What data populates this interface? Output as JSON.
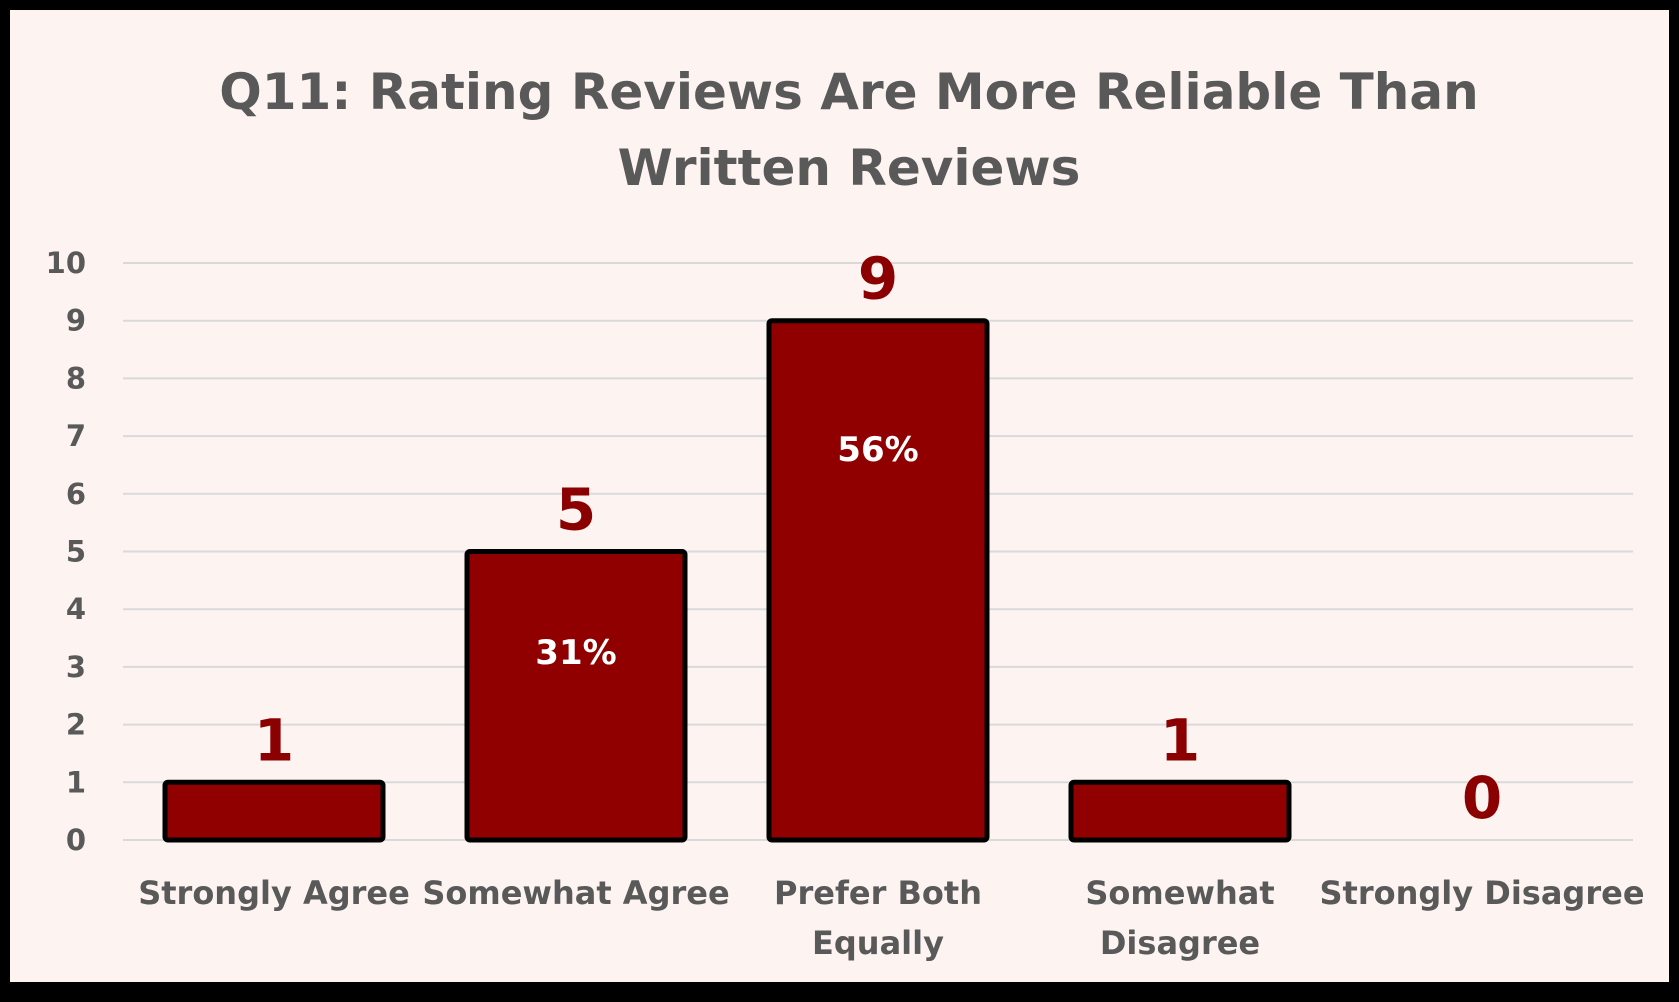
{
  "chart_data": {
    "type": "bar",
    "title": "Q11: Rating Reviews Are More Reliable Than Written Reviews",
    "title_lines": [
      "Q11: Rating Reviews Are More Reliable Than",
      "Written Reviews"
    ],
    "categories": [
      "Strongly Agree",
      "Somewhat Agree",
      "Prefer Both Equally",
      "Somewhat Disagree",
      "Strongly Disagree"
    ],
    "category_lines": [
      [
        "Strongly Agree"
      ],
      [
        "Somewhat Agree"
      ],
      [
        "Prefer Both",
        "Equally"
      ],
      [
        "Somewhat",
        "Disagree"
      ],
      [
        "Strongly Disagree"
      ]
    ],
    "values": [
      1,
      5,
      9,
      1,
      0
    ],
    "percent_labels": [
      "",
      "31%",
      "56%",
      "",
      ""
    ],
    "xlabel": "",
    "ylabel": "",
    "ylim": [
      0,
      10
    ],
    "yticks": [
      "0",
      "1",
      "2",
      "3",
      "4",
      "5",
      "6",
      "7",
      "8",
      "9",
      "10"
    ],
    "grid": true,
    "legend": "none",
    "colors": {
      "bar_fill": "#900000",
      "bar_stroke": "#000000",
      "value_label": "#8b0000",
      "gridline": "#d9d9d9",
      "background": "#fdf4f2",
      "text": "#595959"
    }
  }
}
